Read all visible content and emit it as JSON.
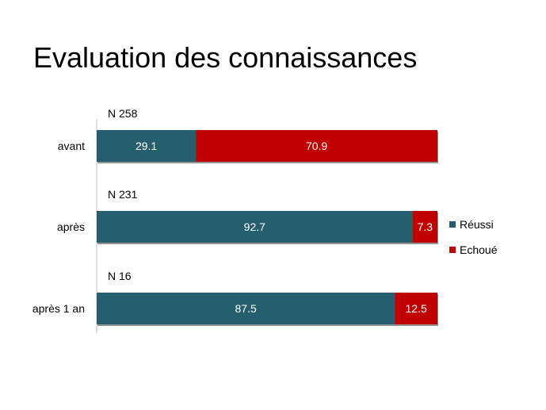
{
  "title": "Evaluation des connaissances",
  "chart_data": {
    "type": "bar",
    "orientation": "horizontal",
    "stacked": true,
    "percent": true,
    "title": "Evaluation des connaissances",
    "categories": [
      "avant",
      "après",
      "après 1 an"
    ],
    "sample_sizes": [
      "N 258",
      "N 231",
      "N 16"
    ],
    "series": [
      {
        "name": "Réussi",
        "color": "#255F6E",
        "values": [
          29.1,
          92.7,
          87.5
        ]
      },
      {
        "name": "Echoué",
        "color": "#C00000",
        "values": [
          70.9,
          7.3,
          12.5
        ]
      }
    ],
    "xlim": [
      0,
      100
    ],
    "grid": false,
    "legend": "right"
  }
}
